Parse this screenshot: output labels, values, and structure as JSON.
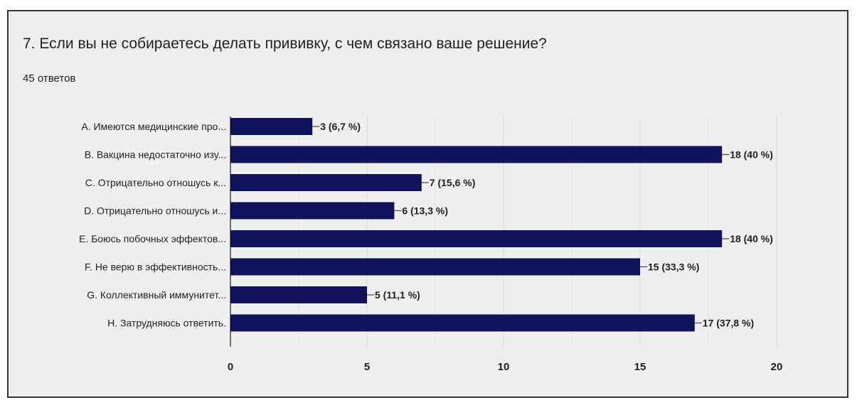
{
  "question": {
    "title": "7. Если вы не собираетесь делать прививку, с чем связано ваше решение?",
    "response_count": "45 ответов"
  },
  "colors": {
    "bar": "#11135a",
    "card_background": "#efefef",
    "gridline": "#dcdcdc",
    "axis": "#444444",
    "text": "#1f1f1f"
  },
  "chart_data": {
    "type": "bar",
    "orientation": "horizontal",
    "title": "",
    "xlabel": "",
    "ylabel": "",
    "xlim": [
      0,
      20
    ],
    "ticks": [
      0,
      5,
      10,
      15,
      20
    ],
    "grid": true,
    "legend": "none",
    "categories": [
      "A. Имеются медицинские про...",
      "B. Вакцина недостаточно изу...",
      "C. Отрицательно отношусь к...",
      "D. Отрицательно отношусь и...",
      "E. Боюсь побочных эффектов...",
      "F. Не верю в эффективность...",
      "G. Коллективный иммунитет...",
      "H. Затрудняюсь ответить."
    ],
    "values": [
      3,
      18,
      7,
      6,
      18,
      15,
      5,
      17
    ],
    "data_labels": [
      "3 (6,7 %)",
      "18 (40 %)",
      "7 (15,6 %)",
      "6 (13,3 %)",
      "18 (40 %)",
      "15 (33,3 %)",
      "5 (11,1 %)",
      "17 (37,8 %)"
    ]
  }
}
